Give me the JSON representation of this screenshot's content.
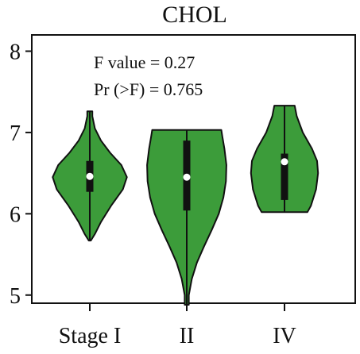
{
  "chart_data": {
    "type": "violin",
    "title": "CHOL",
    "xlabel": "",
    "ylabel": "",
    "categories": [
      "Stage I",
      "II",
      "IV"
    ],
    "ylim": [
      4.9,
      8.2
    ],
    "yticks": [
      5,
      6,
      7,
      8
    ],
    "fill_color": "#3c9c3a",
    "outline_color": "#111111",
    "median_color": "#ffffff",
    "annotations": [
      "F value = 0.27",
      "Pr (>F) = 0.765"
    ],
    "violins": [
      {
        "category": "Stage I",
        "min": 5.67,
        "max": 7.26,
        "q1": 6.27,
        "median": 6.46,
        "q3": 6.65,
        "profile": [
          [
            5.67,
            0.02
          ],
          [
            5.75,
            0.1
          ],
          [
            5.9,
            0.22
          ],
          [
            6.1,
            0.42
          ],
          [
            6.3,
            0.65
          ],
          [
            6.45,
            0.73
          ],
          [
            6.6,
            0.62
          ],
          [
            6.75,
            0.4
          ],
          [
            6.9,
            0.22
          ],
          [
            7.05,
            0.1
          ],
          [
            7.2,
            0.05
          ],
          [
            7.26,
            0.05
          ]
        ]
      },
      {
        "category": "II",
        "min": 4.88,
        "max": 7.03,
        "q1": 6.04,
        "median": 6.45,
        "q3": 6.9,
        "profile": [
          [
            4.88,
            0.04
          ],
          [
            5.0,
            0.04
          ],
          [
            5.2,
            0.1
          ],
          [
            5.4,
            0.2
          ],
          [
            5.6,
            0.34
          ],
          [
            5.8,
            0.49
          ],
          [
            6.0,
            0.63
          ],
          [
            6.2,
            0.72
          ],
          [
            6.4,
            0.77
          ],
          [
            6.6,
            0.78
          ],
          [
            6.8,
            0.74
          ],
          [
            6.95,
            0.7
          ],
          [
            7.03,
            0.68
          ]
        ]
      },
      {
        "category": "IV",
        "min": 6.02,
        "max": 7.33,
        "q1": 6.17,
        "median": 6.64,
        "q3": 6.74,
        "profile": [
          [
            6.02,
            0.45
          ],
          [
            6.1,
            0.52
          ],
          [
            6.3,
            0.62
          ],
          [
            6.5,
            0.66
          ],
          [
            6.65,
            0.64
          ],
          [
            6.8,
            0.54
          ],
          [
            7.0,
            0.36
          ],
          [
            7.2,
            0.24
          ],
          [
            7.33,
            0.2
          ]
        ]
      }
    ]
  }
}
